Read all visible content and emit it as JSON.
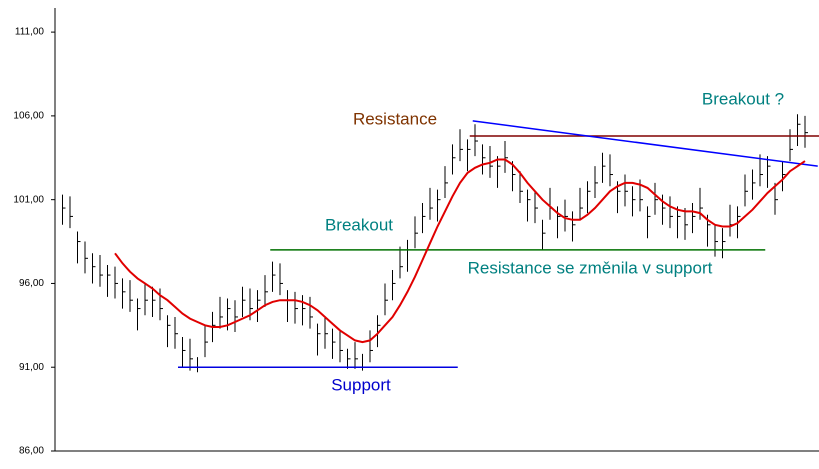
{
  "chart_data": {
    "type": "ohlc",
    "ylim": [
      86,
      112.2
    ],
    "xlim": [
      -1,
      101
    ],
    "yticks": [
      {
        "value": 86,
        "label": "86,00"
      },
      {
        "value": 91,
        "label": "91,00"
      },
      {
        "value": 96,
        "label": "96,00"
      },
      {
        "value": 101,
        "label": "101,00"
      },
      {
        "value": 106,
        "label": "106,00"
      },
      {
        "value": 111,
        "label": "111,00"
      }
    ],
    "color": "#000000",
    "high": [
      101.3,
      101.2,
      99.1,
      98.5,
      97.8,
      97.7,
      97.1,
      97,
      96.3,
      96.2,
      95.1,
      96,
      95.8,
      95.7,
      94.1,
      94,
      92.8,
      92.7,
      91.6,
      93.5,
      94.3,
      95.2,
      95.1,
      95,
      95.8,
      95.7,
      95.6,
      96.5,
      97.3,
      97.2,
      95.6,
      95.5,
      95.3,
      95.2,
      93.6,
      94,
      93.3,
      93.2,
      92.1,
      92.5,
      91.8,
      93.2,
      94.1,
      96,
      96.8,
      98.2,
      98.6,
      100,
      100.8,
      101.7,
      101.6,
      103,
      104.3,
      105.2,
      104.6,
      105.5,
      104.3,
      104.2,
      103.6,
      104.5,
      103.3,
      102.7,
      101.6,
      101.5,
      99.8,
      101.7,
      100.6,
      101,
      100.3,
      101.7,
      102.1,
      103,
      103.8,
      103.7,
      102.1,
      102.5,
      101.8,
      102.2,
      100.6,
      102,
      101.3,
      101.2,
      100.6,
      100.5,
      100.8,
      101.7,
      100.1,
      99.5,
      99.3,
      100.7,
      100.6,
      102.5,
      102.8,
      103.7,
      103.6,
      102,
      103.3,
      105.2,
      106.1,
      106
    ],
    "low": [
      99.5,
      99.3,
      97.2,
      96.6,
      96,
      95.8,
      95.2,
      95.1,
      94.5,
      94.3,
      93.2,
      94.1,
      94,
      93.8,
      92.2,
      92.1,
      91,
      90.8,
      90.7,
      91.6,
      92.5,
      93.3,
      93.2,
      93.1,
      94,
      93.8,
      93.7,
      94.6,
      95.5,
      95.3,
      93.7,
      93.6,
      93.5,
      93.3,
      91.7,
      92.1,
      91.5,
      91.3,
      90.9,
      90.9,
      90.8,
      91.3,
      92.2,
      94.1,
      95,
      96.3,
      96.7,
      98.1,
      99,
      99.8,
      99.7,
      101.1,
      102.5,
      103.3,
      102.7,
      103.6,
      102.5,
      102.3,
      101.7,
      102.6,
      101.5,
      100.8,
      99.7,
      99.6,
      98,
      99.8,
      98.7,
      99.1,
      98.5,
      99.8,
      100.2,
      101.1,
      102,
      101.8,
      100.2,
      100.6,
      100,
      100.3,
      98.7,
      100.1,
      99.5,
      99.3,
      98.7,
      98.6,
      99,
      99.8,
      98.2,
      97.6,
      97.5,
      98.8,
      98.7,
      100.6,
      101,
      101.8,
      101.7,
      100.1,
      101.5,
      103.3,
      104.2,
      104.1
    ],
    "close": [
      100.5,
      100,
      98.5,
      97.5,
      97,
      96.5,
      96.5,
      96,
      95.5,
      95,
      94.5,
      95,
      95,
      94.5,
      93.5,
      93,
      92,
      91.5,
      91,
      92.5,
      93.5,
      94,
      94.5,
      94,
      95,
      94.5,
      95,
      95.5,
      96.5,
      96,
      95,
      94.5,
      94.5,
      94,
      93,
      93,
      92.5,
      92,
      91.5,
      91.5,
      91,
      92,
      93.5,
      95,
      96,
      97,
      98,
      99,
      100,
      100.5,
      101,
      102,
      103.5,
      104,
      104,
      104.5,
      103.5,
      103,
      103,
      103.5,
      102.5,
      101.5,
      101,
      100.5,
      99,
      100.5,
      100,
      100,
      99.5,
      100.5,
      101.5,
      102,
      103,
      102.5,
      101.5,
      101.5,
      101,
      101,
      100,
      101,
      100.5,
      100,
      100,
      99.5,
      100,
      100.5,
      99.5,
      98.5,
      98.5,
      99.5,
      100,
      101.5,
      102,
      102.5,
      103,
      101,
      102.5,
      104,
      105.5,
      105
    ],
    "ma": {
      "color": "#e00000",
      "values": [
        null,
        null,
        null,
        null,
        null,
        null,
        null,
        97.8,
        97.2,
        96.7,
        96.3,
        96,
        95.7,
        95.3,
        95,
        94.6,
        94.2,
        93.9,
        93.7,
        93.5,
        93.4,
        93.4,
        93.5,
        93.7,
        93.9,
        94.1,
        94.4,
        94.7,
        94.9,
        95,
        95,
        95,
        94.9,
        94.7,
        94.4,
        94,
        93.6,
        93.2,
        92.9,
        92.6,
        92.5,
        92.6,
        93,
        93.5,
        94,
        94.7,
        95.5,
        96.4,
        97.4,
        98.4,
        99.4,
        100.3,
        101.2,
        102,
        102.6,
        102.9,
        103.1,
        103.2,
        103.4,
        103.4,
        103.1,
        102.6,
        102,
        101.5,
        101,
        100.6,
        100.2,
        99.9,
        99.8,
        99.8,
        100.1,
        100.5,
        101,
        101.5,
        101.8,
        102,
        102,
        101.9,
        101.7,
        101.3,
        100.9,
        100.6,
        100.4,
        100.3,
        100.3,
        100.2,
        99.8,
        99.5,
        99.4,
        99.4,
        99.6,
        100,
        100.4,
        100.9,
        101.4,
        101.8,
        102.2,
        102.7,
        103,
        103.3
      ]
    },
    "lines": [
      {
        "x": [
          15.4,
          52.7
        ],
        "y": [
          91,
          91
        ],
        "color": "#0000e0"
      },
      {
        "x": [
          27.7,
          93.7
        ],
        "y": [
          98,
          98
        ],
        "color": "#007000"
      },
      {
        "x": [
          54.3,
          101
        ],
        "y": [
          104.8,
          104.8
        ],
        "color": "#800000"
      },
      {
        "x": [
          54.7,
          100.7
        ],
        "y": [
          105.7,
          103
        ],
        "color": "#0000ff"
      }
    ],
    "annotations": [
      {
        "text": "Resistance",
        "color": "#7f3300"
      },
      {
        "text": "Breakout",
        "color": "#008080"
      },
      {
        "text": "Resistance se změnila v support",
        "color": "#008080"
      },
      {
        "text": "Support",
        "color": "#0000cc"
      },
      {
        "text": "Breakout ?",
        "color": "#008080"
      }
    ]
  }
}
